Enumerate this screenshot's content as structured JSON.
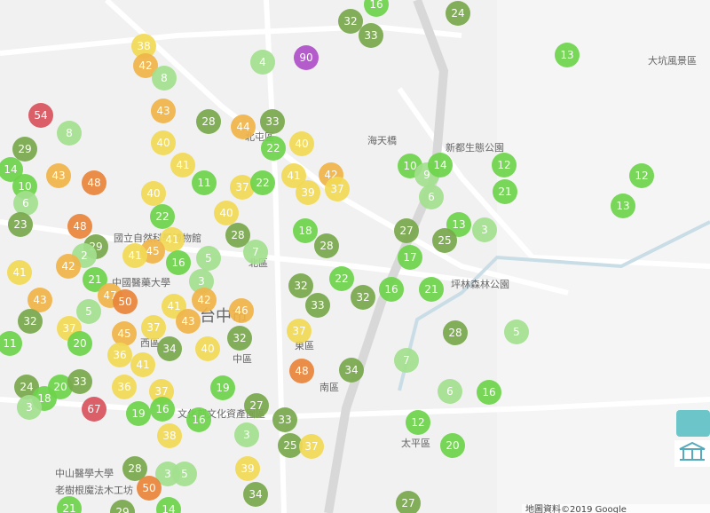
{
  "markers": [
    16,
    24,
    32,
    33,
    13,
    38,
    4,
    90,
    42,
    8,
    43,
    28,
    33,
    44,
    54,
    29,
    40,
    22,
    40,
    14,
    41,
    11,
    43,
    48,
    37,
    22,
    41,
    39,
    42,
    37,
    10,
    9,
    14,
    12,
    12,
    10,
    40,
    6,
    6,
    21,
    13,
    22,
    40,
    23,
    48,
    18,
    13,
    3,
    27,
    25,
    28,
    28,
    41,
    7,
    29,
    2,
    45,
    41,
    5,
    16,
    42,
    17,
    41,
    21,
    3,
    32,
    22,
    32,
    16,
    21,
    43,
    47,
    50,
    41,
    33,
    42,
    5,
    46,
    32,
    43,
    37,
    37,
    45,
    32,
    37,
    28,
    5,
    11,
    20,
    34,
    40,
    36,
    41,
    7,
    34,
    48,
    24,
    20,
    33,
    36,
    37,
    19,
    6,
    16,
    18,
    3,
    67,
    19,
    16,
    27,
    16,
    33,
    12,
    38,
    3,
    25,
    37,
    20,
    39,
    28,
    3,
    5,
    50,
    34,
    27,
    21,
    29,
    14,
    8
  ],
  "places": [
    "北區",
    "中區",
    "東區",
    "西區",
    "太平區",
    "坪林森林公園",
    "新都生態公園",
    "大坑風景區",
    "中山醫學大學",
    "國立自然科學博物館",
    "海天橋",
    "南區",
    "北屯區",
    "文化部文化資產園區",
    "中國醫藥大學",
    "老樹根魔法木工坊",
    "台中市"
  ],
  "attribution": "地圖資料©2019 Google"
}
